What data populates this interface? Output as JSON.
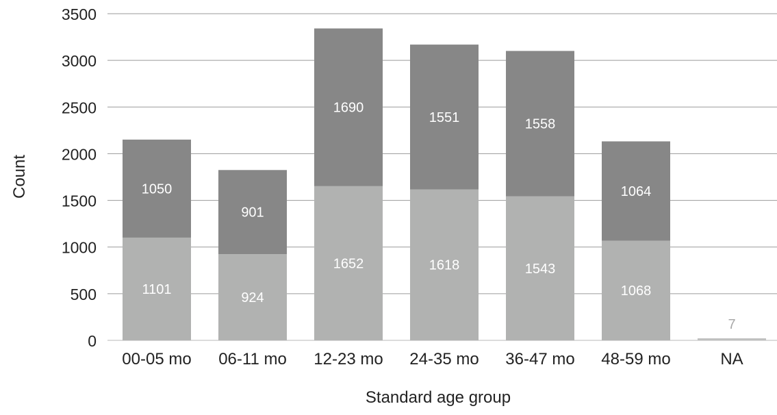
{
  "colors": {
    "bottom_segment": "#b1b2b1",
    "top_segment": "#878787",
    "na_bar": "#bfc0bf",
    "gridline": "#9a9a9a",
    "axis_text": "#222222",
    "label_on_bar": "#ffffff",
    "label_above_bar": "#a8a8a8"
  },
  "chart_data": {
    "type": "bar",
    "stacked": true,
    "xlabel": "Standard age group",
    "ylabel": "Count",
    "ylim": [
      0,
      3500
    ],
    "yticks": [
      0,
      500,
      1000,
      1500,
      2000,
      2500,
      3000,
      3500
    ],
    "grid": true,
    "legend": "none",
    "categories": [
      "00-05 mo",
      "06-11 mo",
      "12-23 mo",
      "24-35 mo",
      "36-47 mo",
      "48-59 mo",
      "NA"
    ],
    "series": [
      {
        "values": [
          1101,
          924,
          1652,
          1618,
          1543,
          1068,
          7
        ]
      },
      {
        "values": [
          1050,
          901,
          1690,
          1551,
          1558,
          1064,
          0
        ]
      }
    ]
  }
}
